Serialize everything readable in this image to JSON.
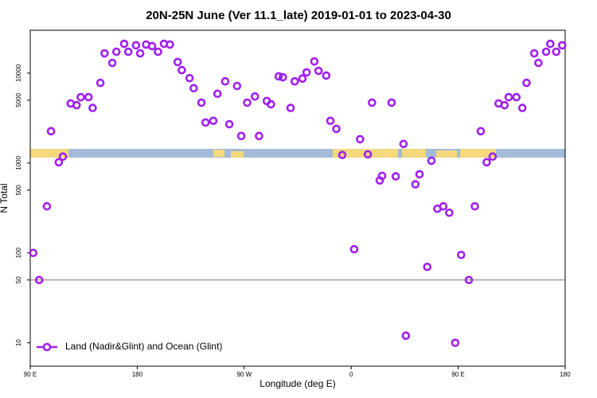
{
  "chart_data": {
    "type": "scatter",
    "title": "20N-25N June (Ver 11.1_late)   2019-01-01 to 2023-04-30",
    "x_label": "Longitude (deg E)",
    "y_label": "N Total",
    "y_scale": "log",
    "legend": "bottom-left",
    "xlim": [
      90,
      540
    ],
    "xticks": [
      {
        "value": 90,
        "label": "90 E"
      },
      180,
      {
        "value": 270,
        "label": "90 W"
      },
      {
        "value": 360,
        "label": "0"
      },
      {
        "value": 450,
        "label": "90 E"
      },
      {
        "value": 540,
        "label": "180"
      }
    ],
    "ylim": [
      5.5,
      30000
    ],
    "yticks": [
      10,
      50,
      100,
      500,
      1000,
      5000,
      10000
    ],
    "hline": 50,
    "series": [
      {
        "name": "Land (Nadir&Glint) and Ocean (Glint)",
        "color": "#a020f0",
        "x": [
          92.5,
          97.5,
          104,
          107.5,
          114,
          117.5,
          124,
          129,
          132.5,
          139,
          142.5,
          149,
          152.5,
          159,
          162.5,
          169,
          172.5,
          179,
          182.5,
          187.5,
          192.5,
          197.5,
          202.5,
          207.5,
          214,
          217.5,
          224,
          227.5,
          234,
          237.5,
          244,
          247.5,
          254,
          257.5,
          264,
          267.5,
          272.5,
          279,
          282.5,
          289,
          292.5,
          299,
          302.5,
          309,
          312.5,
          319,
          322.5,
          329,
          332.5,
          339,
          342.5,
          347.5,
          352.5,
          362.5,
          367.5,
          374,
          377.5,
          384,
          386,
          394,
          397.5,
          404,
          406,
          414,
          417.5,
          424,
          427.5,
          432.5,
          437.5,
          442.5,
          447.5,
          452.5,
          459,
          464,
          469,
          474,
          479,
          484,
          489,
          492.5,
          499,
          504,
          507.5,
          514,
          517.5,
          524,
          527.5,
          532.5,
          537.5
        ],
        "values": [
          100,
          50,
          330,
          2260,
          1020,
          1180,
          4600,
          4400,
          5400,
          5400,
          4100,
          7800,
          16600,
          13000,
          17300,
          21200,
          17300,
          20400,
          16600,
          20800,
          20000,
          17300,
          21200,
          20800,
          13300,
          10800,
          8800,
          6800,
          4700,
          2820,
          2950,
          5900,
          8100,
          2700,
          7200,
          2000,
          4700,
          5500,
          2000,
          4900,
          4500,
          9200,
          9000,
          4100,
          8100,
          8700,
          10200,
          13500,
          10600,
          9400,
          2950,
          2400,
          1230,
          110,
          1840,
          1250,
          4700,
          640,
          720,
          4700,
          710,
          1630,
          12,
          580,
          750,
          70,
          1060,
          310,
          330,
          280,
          10,
          95,
          50,
          330,
          2260,
          1020,
          1180,
          4600,
          4400,
          5400,
          5400,
          4100,
          7800,
          16600,
          13000,
          17300,
          21200,
          17300,
          20400
        ]
      }
    ]
  }
}
